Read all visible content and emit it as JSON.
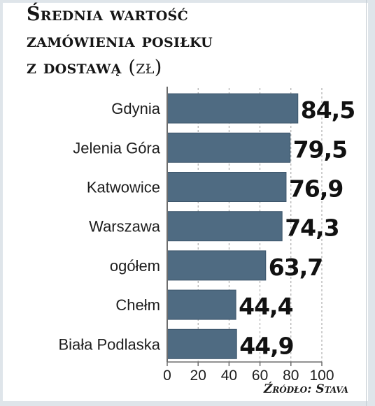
{
  "title": {
    "line1": "Średnia wartość",
    "line2": "zamówienia posiłku",
    "line3": "z dostawą",
    "unit": "(zł)"
  },
  "source": "Źródło: Stava",
  "colors": {
    "bar": "#4f6b82",
    "bar_edge": "#3c556b",
    "axis": "#6d6d6d",
    "grid": "#9e9e9e"
  },
  "chart_data": {
    "type": "bar",
    "orientation": "horizontal",
    "categories": [
      "Gdynia",
      "Jelenia Góra",
      "Katwowice",
      "Warszawa",
      "ogółem",
      "Chełm",
      "Biała Podlaska"
    ],
    "values": [
      84.5,
      79.5,
      76.9,
      74.3,
      63.7,
      44.4,
      44.9
    ],
    "value_labels": [
      "84,5",
      "79,5",
      "76,9",
      "74,3",
      "63,7",
      "44,4",
      "44,9"
    ],
    "xlim": [
      0,
      100
    ],
    "xticks": [
      0,
      20,
      40,
      60,
      80,
      100
    ],
    "grid": "vertical dashed",
    "legend": "none"
  }
}
